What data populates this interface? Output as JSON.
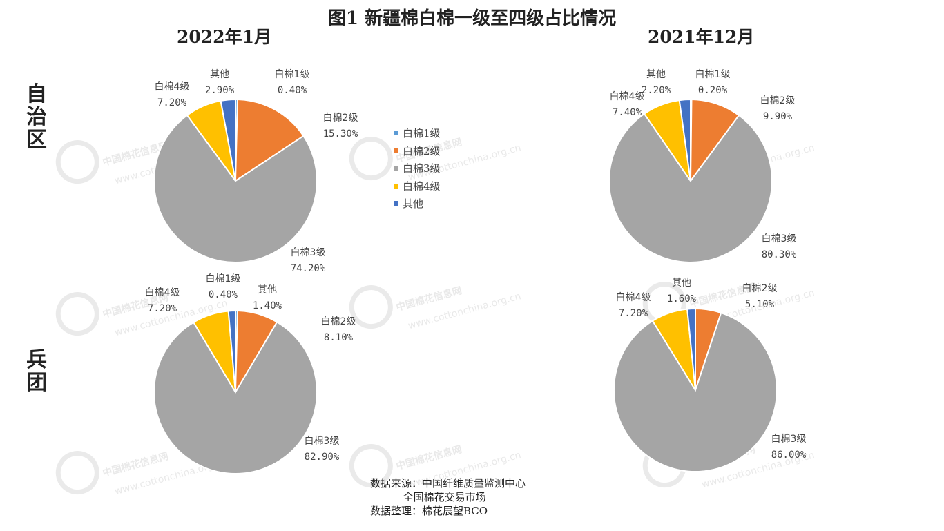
{
  "title": "图1 新疆棉白棉一级至四级占比情况",
  "columns": [
    "2022年1月",
    "2021年12月"
  ],
  "rows": [
    "自治区",
    "兵团"
  ],
  "watermark": {
    "cn": "中国棉花信息网",
    "url": "www.cottonchina.org.cn"
  },
  "legend": [
    {
      "label": "白棉1级",
      "color": "#5b9bd5"
    },
    {
      "label": "白棉2级",
      "color": "#ed7d31"
    },
    {
      "label": "白棉3级",
      "color": "#a5a5a5"
    },
    {
      "label": "白棉4级",
      "color": "#ffc000"
    },
    {
      "label": "其他",
      "color": "#4472c4"
    }
  ],
  "source": {
    "line1": "数据来源：中国纤维质量监测中心",
    "line2": "          全国棉花交易市场",
    "line3": "数据整理：棉花展望BCO"
  },
  "chart_data": [
    {
      "type": "pie",
      "panel": "自治区 2022年1月",
      "labels": [
        "白棉1级",
        "白棉2级",
        "白棉3级",
        "白棉4级",
        "其他"
      ],
      "values": [
        0.4,
        15.3,
        74.2,
        7.2,
        2.9
      ],
      "value_labels": [
        "0.40%",
        "15.30%",
        "74.20%",
        "7.20%",
        "2.90%"
      ]
    },
    {
      "type": "pie",
      "panel": "自治区 2021年12月",
      "labels": [
        "白棉1级",
        "白棉2级",
        "白棉3级",
        "白棉4级",
        "其他"
      ],
      "values": [
        0.2,
        9.9,
        80.3,
        7.4,
        2.2
      ],
      "value_labels": [
        "0.20%",
        "9.90%",
        "80.30%",
        "7.40%",
        "2.20%"
      ]
    },
    {
      "type": "pie",
      "panel": "兵团 2022年1月",
      "labels": [
        "白棉1级",
        "白棉2级",
        "白棉3级",
        "白棉4级",
        "其他"
      ],
      "values": [
        0.4,
        8.1,
        82.9,
        7.2,
        1.4
      ],
      "value_labels": [
        "0.40%",
        "8.10%",
        "82.90%",
        "7.20%",
        "1.40%"
      ]
    },
    {
      "type": "pie",
      "panel": "兵团 2021年12月",
      "labels": [
        "白棉2级",
        "白棉3级",
        "白棉4级",
        "其他"
      ],
      "values": [
        5.1,
        86.0,
        7.2,
        1.6
      ],
      "value_labels": [
        "5.10%",
        "86.00%",
        "7.20%",
        "1.60%"
      ]
    }
  ]
}
